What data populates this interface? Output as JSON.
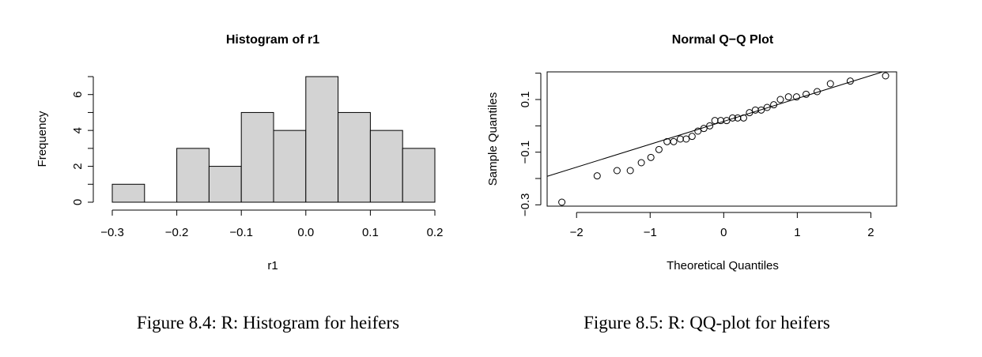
{
  "chart_data": [
    {
      "type": "bar",
      "title": "Histogram of r1",
      "xlabel": "r1",
      "ylabel": "Frequency",
      "bins": [
        {
          "start": -0.3,
          "end": -0.25,
          "count": 1
        },
        {
          "start": -0.25,
          "end": -0.2,
          "count": 0
        },
        {
          "start": -0.2,
          "end": -0.15,
          "count": 3
        },
        {
          "start": -0.15,
          "end": -0.1,
          "count": 2
        },
        {
          "start": -0.1,
          "end": -0.05,
          "count": 5
        },
        {
          "start": -0.05,
          "end": 0.0,
          "count": 4
        },
        {
          "start": 0.0,
          "end": 0.05,
          "count": 7
        },
        {
          "start": 0.05,
          "end": 0.1,
          "count": 5
        },
        {
          "start": 0.1,
          "end": 0.15,
          "count": 4
        },
        {
          "start": 0.15,
          "end": 0.2,
          "count": 3
        }
      ],
      "xlim": [
        -0.3,
        0.2
      ],
      "ylim": [
        0,
        7
      ],
      "xticks": [
        "-0.3",
        "-0.2",
        "-0.1",
        "0.0",
        "0.1",
        "0.2"
      ],
      "yticks": [
        "0",
        "2",
        "4",
        "6"
      ],
      "bar_fill": "#d3d3d3",
      "caption": "Figure 8.4: R: Histogram for heifers"
    },
    {
      "type": "scatter",
      "title": "Normal Q−Q Plot",
      "xlabel": "Theoretical Quantiles",
      "ylabel": "Sample Quantiles",
      "points": [
        [
          -2.2,
          -0.29
        ],
        [
          -1.72,
          -0.19
        ],
        [
          -1.45,
          -0.17
        ],
        [
          -1.27,
          -0.17
        ],
        [
          -1.12,
          -0.14
        ],
        [
          -0.99,
          -0.12
        ],
        [
          -0.88,
          -0.09
        ],
        [
          -0.77,
          -0.06
        ],
        [
          -0.68,
          -0.06
        ],
        [
          -0.59,
          -0.05
        ],
        [
          -0.51,
          -0.05
        ],
        [
          -0.43,
          -0.04
        ],
        [
          -0.35,
          -0.02
        ],
        [
          -0.27,
          -0.01
        ],
        [
          -0.19,
          0.0
        ],
        [
          -0.12,
          0.02
        ],
        [
          -0.04,
          0.02
        ],
        [
          0.04,
          0.02
        ],
        [
          0.12,
          0.03
        ],
        [
          0.19,
          0.03
        ],
        [
          0.27,
          0.03
        ],
        [
          0.35,
          0.05
        ],
        [
          0.43,
          0.06
        ],
        [
          0.51,
          0.06
        ],
        [
          0.59,
          0.07
        ],
        [
          0.68,
          0.08
        ],
        [
          0.77,
          0.1
        ],
        [
          0.88,
          0.11
        ],
        [
          0.99,
          0.11
        ],
        [
          1.12,
          0.12
        ],
        [
          1.27,
          0.13
        ],
        [
          1.45,
          0.16
        ],
        [
          1.72,
          0.17
        ],
        [
          2.2,
          0.19
        ]
      ],
      "reference_line": {
        "intercept": 0.017,
        "slope": 0.087
      },
      "xlim": [
        -2.4,
        2.35
      ],
      "ylim": [
        -0.305,
        0.205
      ],
      "xticks": [
        "−2",
        "−1",
        "0",
        "1",
        "2"
      ],
      "yticks": [
        "−0.3",
        "−0.1",
        "0.1"
      ],
      "caption": "Figure 8.5: R: QQ-plot for heifers"
    }
  ]
}
